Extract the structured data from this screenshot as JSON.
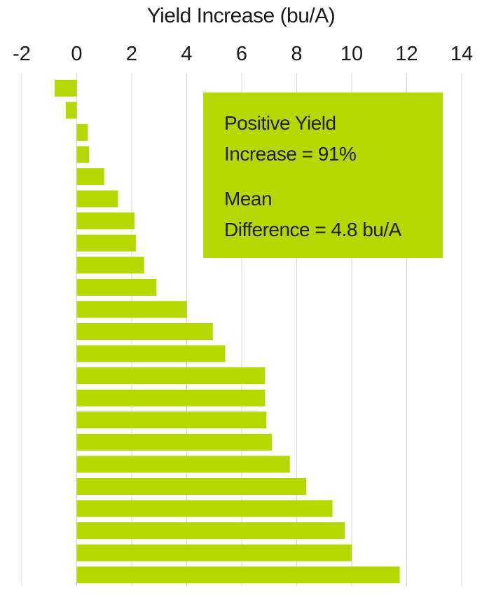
{
  "chart_data": {
    "type": "bar",
    "orientation": "horizontal",
    "xlabel": "Yield Increase (bu/A)",
    "xlim": [
      -2,
      14
    ],
    "xticks": [
      -2,
      0,
      2,
      4,
      6,
      8,
      10,
      12,
      14
    ],
    "grid": true,
    "bar_color": "#b5d900",
    "values": [
      -0.8,
      -0.4,
      0.4,
      0.45,
      1.0,
      1.5,
      2.1,
      2.15,
      2.45,
      2.9,
      4.0,
      4.95,
      5.4,
      6.85,
      6.85,
      6.9,
      7.1,
      7.75,
      8.35,
      9.3,
      9.75,
      10.0,
      11.75
    ],
    "annotation": {
      "lines": [
        "Positive Yield",
        "Increase = 91%",
        "Mean",
        "Difference = 4.8 bu/A"
      ],
      "background": "#b5d900"
    }
  }
}
